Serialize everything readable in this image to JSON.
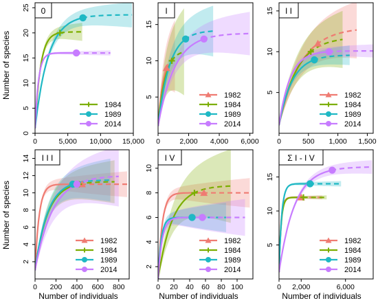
{
  "figure": {
    "ylabel": "Number of species",
    "xlabel": "Number of individuals"
  },
  "colors": {
    "1982": "#ef7b72",
    "1984": "#7cae00",
    "1989": "#1fb8c4",
    "2014": "#c77cff"
  },
  "chart_data": [
    {
      "type": "line",
      "panel_label": "0",
      "xlim": [
        0,
        15000
      ],
      "ylim": [
        0,
        26
      ],
      "xticks": [
        0,
        5000,
        10000,
        15000
      ],
      "xtick_labels": [
        "0",
        "5,000",
        "10,000",
        "15,000"
      ],
      "yticks": [
        0,
        5,
        10,
        15,
        20,
        25
      ],
      "ytick_labels": [
        "0",
        "5",
        "10",
        "15",
        "20",
        "25"
      ],
      "legend": [
        "1984",
        "1989",
        "2014"
      ],
      "series": [
        {
          "name": "1984",
          "marker": "plus",
          "n": 3800,
          "s": 20,
          "xmax": 7200,
          "asym": 20.2,
          "band_at_end": 1.8
        },
        {
          "name": "1989",
          "marker": "circle",
          "n": 7300,
          "s": 23,
          "xmax": 14800,
          "asym": 23.6,
          "band_at_end": 2.5
        },
        {
          "name": "2014",
          "marker": "circle",
          "n": 6300,
          "s": 16,
          "xmax": 11500,
          "asym": 16.0,
          "band_at_end": 0.5
        }
      ]
    },
    {
      "type": "line",
      "panel_label": "I",
      "xlim": [
        0,
        6200
      ],
      "ylim": [
        0,
        18
      ],
      "xticks": [
        0,
        2000,
        4000,
        6000
      ],
      "xtick_labels": [
        "0",
        "2,000",
        "4,000",
        "6,000"
      ],
      "yticks": [
        5,
        10,
        15
      ],
      "ytick_labels": [
        "5",
        "10",
        "15"
      ],
      "legend": [
        "1982",
        "1984",
        "1989",
        "2014"
      ],
      "series": [
        {
          "name": "1982",
          "marker": "triangle",
          "n": 550,
          "s": 9,
          "xmax": 1100,
          "asym": 11.0,
          "band_at_end": 5
        },
        {
          "name": "1984",
          "marker": "plus",
          "n": 900,
          "s": 10,
          "xmax": 1700,
          "asym": 11.5,
          "band_at_end": 6
        },
        {
          "name": "1989",
          "marker": "circle",
          "n": 1800,
          "s": 13,
          "xmax": 3600,
          "asym": 14.2,
          "band_at_end": 3.5
        },
        {
          "name": "2014",
          "marker": "circle",
          "n": 3000,
          "s": 13,
          "xmax": 6000,
          "asym": 13.8,
          "band_at_end": 3
        }
      ]
    },
    {
      "type": "line",
      "panel_label": "I I",
      "xlim": [
        0,
        1600
      ],
      "ylim": [
        0,
        16
      ],
      "xticks": [
        0,
        500,
        1000,
        1500
      ],
      "xtick_labels": [
        "0",
        "500",
        "1,000",
        "1,500"
      ],
      "yticks": [
        5,
        10,
        15
      ],
      "ytick_labels": [
        "5",
        "10",
        "15"
      ],
      "legend": [
        "1982",
        "1984",
        "1989",
        "2014"
      ],
      "series": [
        {
          "name": "1982",
          "marker": "triangle",
          "n": 660,
          "s": 11,
          "xmax": 1320,
          "asym": 13.0,
          "band_at_end": 3.5
        },
        {
          "name": "1984",
          "marker": "plus",
          "n": 540,
          "s": 10,
          "xmax": 1080,
          "asym": 11.8,
          "band_at_end": 3.5
        },
        {
          "name": "1989",
          "marker": "circle",
          "n": 600,
          "s": 9,
          "xmax": 1200,
          "asym": 9.6,
          "band_at_end": 1.2
        },
        {
          "name": "2014",
          "marker": "circle",
          "n": 850,
          "s": 10,
          "xmax": 1600,
          "asym": 10.1,
          "band_at_end": 0.8
        }
      ]
    },
    {
      "type": "line",
      "panel_label": "I I I",
      "xlim": [
        0,
        900
      ],
      "ylim": [
        0,
        15
      ],
      "xticks": [
        0,
        200,
        400,
        600,
        800
      ],
      "xtick_labels": [
        "0",
        "200",
        "400",
        "600",
        "800"
      ],
      "yticks": [
        2,
        4,
        6,
        8,
        10,
        12,
        14
      ],
      "ytick_labels": [
        "2",
        "4",
        "6",
        "8",
        "10",
        "12",
        "14"
      ],
      "legend": [
        "1982",
        "1984",
        "1989",
        "2014"
      ],
      "series": [
        {
          "name": "1982",
          "marker": "triangle",
          "n": 450,
          "s": 11,
          "xmax": 880,
          "asym": 11.0,
          "band_at_end": 1.5
        },
        {
          "name": "1984",
          "marker": "plus",
          "n": 420,
          "s": 11,
          "xmax": 760,
          "asym": 11.3,
          "band_at_end": 2.5
        },
        {
          "name": "1989",
          "marker": "circle",
          "n": 360,
          "s": 11,
          "xmax": 720,
          "asym": 11.5,
          "band_at_end": 2.5
        },
        {
          "name": "2014",
          "marker": "circle",
          "n": 400,
          "s": 11,
          "xmax": 800,
          "asym": 12.0,
          "band_at_end": 3.5
        }
      ]
    },
    {
      "type": "line",
      "panel_label": "I V",
      "xlim": [
        0,
        120
      ],
      "ylim": [
        1,
        11.5
      ],
      "xticks": [
        0,
        20,
        40,
        60,
        80,
        100
      ],
      "xtick_labels": [
        "0",
        "20",
        "40",
        "60",
        "80",
        "100"
      ],
      "yticks": [
        2,
        4,
        6,
        8,
        10
      ],
      "ytick_labels": [
        "2",
        "4",
        "6",
        "8",
        "10"
      ],
      "legend": [
        "1982",
        "1984",
        "1989",
        "2014"
      ],
      "series": [
        {
          "name": "1982",
          "marker": "triangle",
          "n": 58,
          "s": 8,
          "xmax": 116,
          "asym": 8.0,
          "band_at_end": 1.2
        },
        {
          "name": "1984",
          "marker": "plus",
          "n": 46,
          "s": 8,
          "xmax": 92,
          "asym": 8.6,
          "band_at_end": 3.0
        },
        {
          "name": "1989",
          "marker": "circle",
          "n": 43,
          "s": 6,
          "xmax": 86,
          "asym": 6.0,
          "band_at_end": 1.2
        },
        {
          "name": "2014",
          "marker": "circle",
          "n": 56,
          "s": 6,
          "xmax": 110,
          "asym": 6.0,
          "band_at_end": 1.5
        }
      ]
    },
    {
      "type": "line",
      "panel_label": "Σ I - I V",
      "xlim": [
        0,
        8500
      ],
      "ylim": [
        0,
        19
      ],
      "xticks": [
        0,
        2000,
        6000
      ],
      "xtick_labels": [
        "0",
        "2,000",
        "6,000"
      ],
      "yticks": [
        5,
        10,
        15
      ],
      "ytick_labels": [
        "5",
        "10",
        "15"
      ],
      "legend": [
        "1982",
        "1984",
        "1989",
        "2014"
      ],
      "series": [
        {
          "name": "1982",
          "marker": "triangle",
          "n": 2000,
          "s": 12,
          "xmax": 3900,
          "asym": 12.0,
          "band_at_end": 0.3
        },
        {
          "name": "1984",
          "marker": "plus",
          "n": 2200,
          "s": 12,
          "xmax": 4300,
          "asym": 12.0,
          "band_at_end": 0.3
        },
        {
          "name": "1989",
          "marker": "circle",
          "n": 2800,
          "s": 14,
          "xmax": 5600,
          "asym": 14.0,
          "band_at_end": 0.4
        },
        {
          "name": "2014",
          "marker": "circle",
          "n": 4800,
          "s": 16,
          "xmax": 8400,
          "asym": 16.5,
          "band_at_end": 1.0
        }
      ]
    }
  ]
}
